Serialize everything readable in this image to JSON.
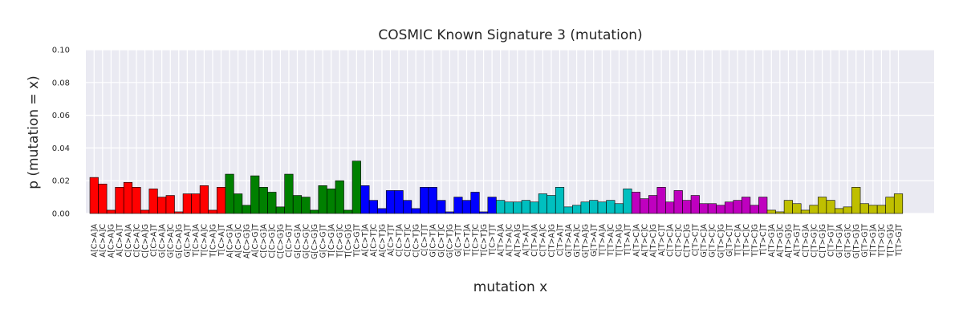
{
  "chart_data": {
    "type": "bar",
    "title": "COSMIC Known Signature 3 (mutation)",
    "xlabel": "mutation x",
    "ylabel": "p (mutation = x)",
    "ylim": [
      0,
      0.1
    ],
    "yticks": [
      "0.00",
      "0.02",
      "0.04",
      "0.06",
      "0.08",
      "0.10"
    ],
    "grid": true,
    "legend": "none",
    "colors": {
      "background": "#eaeaf2",
      "grid": "#ffffff",
      "C>A": "#ff0000",
      "C>G": "#008000",
      "C>T": "#0000ff",
      "T>A": "#00bfbf",
      "T>C": "#bf00bf",
      "T>G": "#bfbf00"
    },
    "groups": [
      {
        "mutation": "C>A",
        "color_key": "C>A",
        "categories": [
          "A[C>A]A",
          "A[C>A]C",
          "A[C>A]G",
          "A[C>A]T",
          "C[C>A]A",
          "C[C>A]C",
          "C[C>A]G",
          "C[C>A]T",
          "G[C>A]A",
          "G[C>A]C",
          "G[C>A]G",
          "G[C>A]T",
          "T[C>A]A",
          "T[C>A]C",
          "T[C>A]G",
          "T[C>A]T"
        ],
        "values": [
          0.022,
          0.018,
          0.002,
          0.016,
          0.019,
          0.016,
          0.002,
          0.015,
          0.01,
          0.011,
          0.001,
          0.012,
          0.012,
          0.017,
          0.002,
          0.016
        ]
      },
      {
        "mutation": "C>G",
        "color_key": "C>G",
        "categories": [
          "A[C>G]A",
          "A[C>G]C",
          "A[C>G]G",
          "A[C>G]T",
          "C[C>G]A",
          "C[C>G]C",
          "C[C>G]G",
          "C[C>G]T",
          "G[C>G]A",
          "G[C>G]C",
          "G[C>G]G",
          "G[C>G]T",
          "T[C>G]A",
          "T[C>G]C",
          "T[C>G]G",
          "T[C>G]T"
        ],
        "values": [
          0.024,
          0.012,
          0.005,
          0.023,
          0.016,
          0.013,
          0.004,
          0.024,
          0.011,
          0.01,
          0.002,
          0.017,
          0.015,
          0.02,
          0.002,
          0.032
        ]
      },
      {
        "mutation": "C>T",
        "color_key": "C>T",
        "categories": [
          "A[C>T]A",
          "A[C>T]C",
          "A[C>T]G",
          "A[C>T]T",
          "C[C>T]A",
          "C[C>T]C",
          "C[C>T]G",
          "C[C>T]T",
          "G[C>T]A",
          "G[C>T]C",
          "G[C>T]G",
          "G[C>T]T",
          "T[C>T]A",
          "T[C>T]C",
          "T[C>T]G",
          "T[C>T]T"
        ],
        "values": [
          0.017,
          0.008,
          0.003,
          0.014,
          0.014,
          0.008,
          0.003,
          0.016,
          0.016,
          0.008,
          0.001,
          0.01,
          0.008,
          0.013,
          0.001,
          0.01
        ]
      },
      {
        "mutation": "T>A",
        "color_key": "T>A",
        "categories": [
          "A[T>A]A",
          "A[T>A]C",
          "A[T>A]G",
          "A[T>A]T",
          "C[T>A]A",
          "C[T>A]C",
          "C[T>A]G",
          "C[T>A]T",
          "G[T>A]A",
          "G[T>A]C",
          "G[T>A]G",
          "G[T>A]T",
          "T[T>A]A",
          "T[T>A]C",
          "T[T>A]G",
          "T[T>A]T"
        ],
        "values": [
          0.008,
          0.007,
          0.007,
          0.008,
          0.007,
          0.012,
          0.011,
          0.016,
          0.004,
          0.005,
          0.007,
          0.008,
          0.007,
          0.008,
          0.006,
          0.015
        ]
      },
      {
        "mutation": "T>C",
        "color_key": "T>C",
        "categories": [
          "A[T>C]A",
          "A[T>C]C",
          "A[T>C]G",
          "A[T>C]T",
          "C[T>C]A",
          "C[T>C]C",
          "C[T>C]G",
          "C[T>C]T",
          "G[T>C]A",
          "G[T>C]C",
          "G[T>C]G",
          "G[T>C]T",
          "T[T>C]A",
          "T[T>C]C",
          "T[T>C]G",
          "T[T>C]T"
        ],
        "values": [
          0.013,
          0.009,
          0.011,
          0.016,
          0.007,
          0.014,
          0.008,
          0.011,
          0.006,
          0.006,
          0.005,
          0.007,
          0.008,
          0.01,
          0.005,
          0.01
        ]
      },
      {
        "mutation": "T>G",
        "color_key": "T>G",
        "categories": [
          "A[T>G]A",
          "A[T>G]C",
          "A[T>G]G",
          "A[T>G]T",
          "C[T>G]A",
          "C[T>G]C",
          "C[T>G]G",
          "C[T>G]T",
          "G[T>G]A",
          "G[T>G]C",
          "G[T>G]G",
          "G[T>G]T",
          "T[T>G]A",
          "T[T>G]C",
          "T[T>G]G",
          "T[T>G]T"
        ],
        "values": [
          0.002,
          0.001,
          0.008,
          0.006,
          0.002,
          0.005,
          0.01,
          0.008,
          0.003,
          0.004,
          0.016,
          0.006,
          0.005,
          0.005,
          0.01,
          0.012
        ]
      }
    ]
  }
}
